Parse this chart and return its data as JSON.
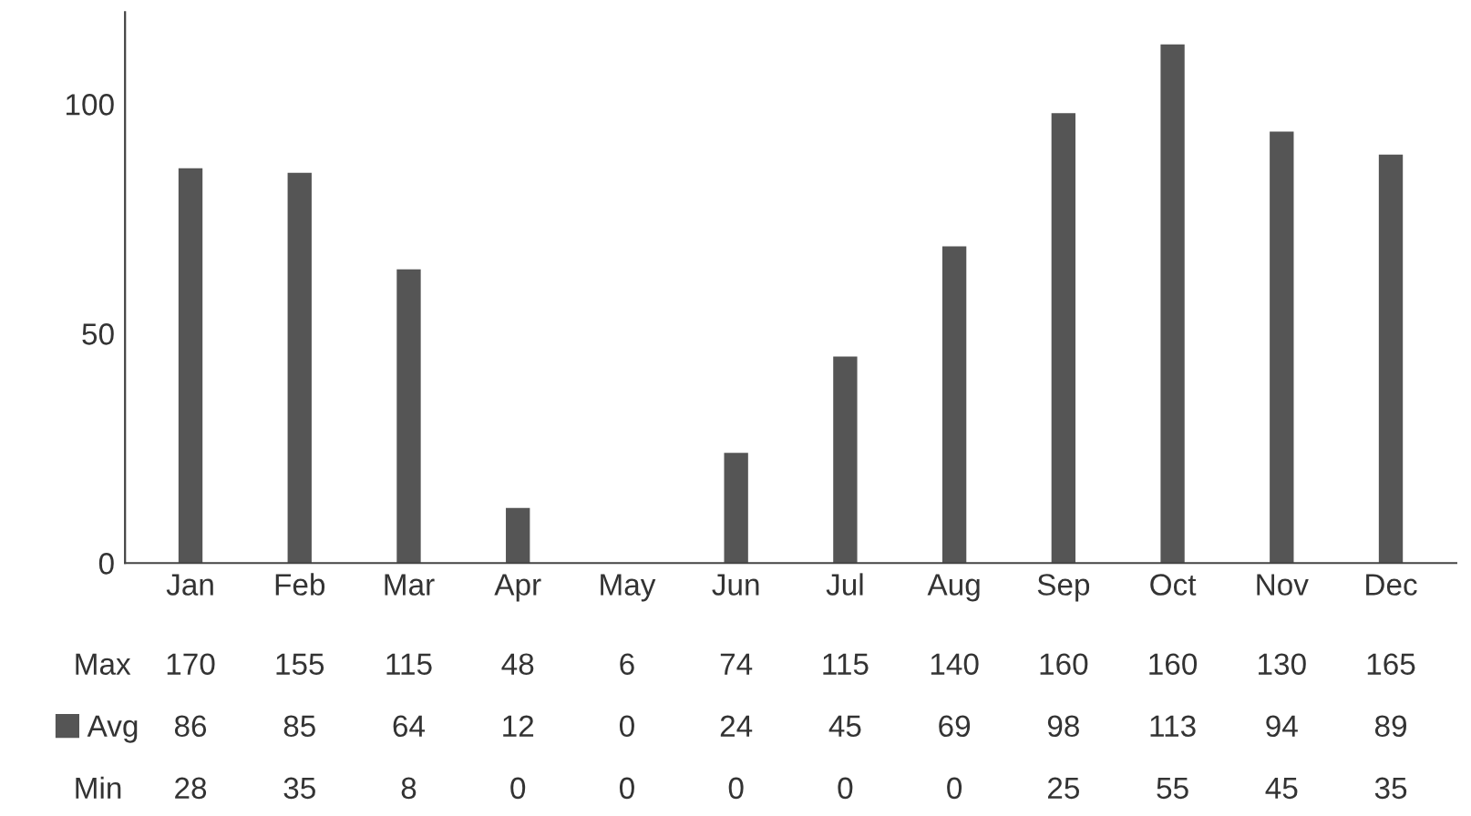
{
  "chart_data": {
    "type": "bar",
    "categories": [
      "Jan",
      "Feb",
      "Mar",
      "Apr",
      "May",
      "Jun",
      "Jul",
      "Aug",
      "Sep",
      "Oct",
      "Nov",
      "Dec"
    ],
    "series": [
      {
        "name": "Avg",
        "color": "#555555",
        "values": [
          86,
          85,
          64,
          12,
          0,
          24,
          45,
          69,
          98,
          113,
          94,
          89
        ]
      }
    ],
    "ylim": [
      0,
      120
    ],
    "yticks": [
      0,
      50,
      100
    ],
    "grid": false,
    "data_labels": true,
    "legend": "bottom left",
    "annotations": [
      "Max",
      "170",
      "155",
      "115",
      "48",
      "6",
      "74",
      "115",
      "140",
      "160",
      "160",
      "130",
      "165",
      "Min",
      "28",
      "35",
      "8",
      "0",
      "0",
      "0",
      "0",
      "0",
      "25",
      "55",
      "45",
      "35"
    ]
  }
}
